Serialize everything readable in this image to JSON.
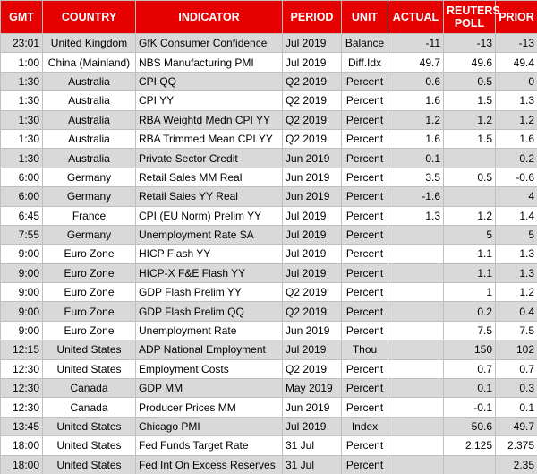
{
  "table": {
    "headers": [
      "GMT",
      "COUNTRY",
      "INDICATOR",
      "PERIOD",
      "UNIT",
      "ACTUAL",
      "REUTERS POLL",
      "PRIOR"
    ],
    "rows": [
      [
        "23:01",
        "United Kingdom",
        "GfK Consumer Confidence",
        "Jul 2019",
        "Balance",
        -11,
        -13,
        -13
      ],
      [
        "1:00",
        "China (Mainland)",
        "NBS Manufacturing PMI",
        "Jul 2019",
        "Diff.Idx",
        49.7,
        49.6,
        49.4
      ],
      [
        "1:30",
        "Australia",
        "CPI QQ",
        "Q2 2019",
        "Percent",
        0.6,
        0.5,
        0
      ],
      [
        "1:30",
        "Australia",
        "CPI YY",
        "Q2 2019",
        "Percent",
        1.6,
        1.5,
        1.3
      ],
      [
        "1:30",
        "Australia",
        "RBA Weightd Medn CPI YY",
        "Q2 2019",
        "Percent",
        1.2,
        1.2,
        1.2
      ],
      [
        "1:30",
        "Australia",
        "RBA Trimmed Mean CPI YY",
        "Q2 2019",
        "Percent",
        1.6,
        1.5,
        1.6
      ],
      [
        "1:30",
        "Australia",
        "Private Sector Credit",
        "Jun 2019",
        "Percent",
        0.1,
        null,
        0.2
      ],
      [
        "6:00",
        "Germany",
        "Retail Sales MM Real",
        "Jun 2019",
        "Percent",
        3.5,
        0.5,
        -0.6
      ],
      [
        "6:00",
        "Germany",
        "Retail Sales YY Real",
        "Jun 2019",
        "Percent",
        -1.6,
        null,
        4
      ],
      [
        "6:45",
        "France",
        "CPI (EU Norm) Prelim YY",
        "Jul 2019",
        "Percent",
        1.3,
        1.2,
        1.4
      ],
      [
        "7:55",
        "Germany",
        "Unemployment Rate SA",
        "Jul 2019",
        "Percent",
        null,
        5,
        5
      ],
      [
        "9:00",
        "Euro Zone",
        "HICP Flash YY",
        "Jul 2019",
        "Percent",
        null,
        1.1,
        1.3
      ],
      [
        "9:00",
        "Euro Zone",
        "HICP-X F&E Flash YY",
        "Jul 2019",
        "Percent",
        null,
        1.1,
        1.3
      ],
      [
        "9:00",
        "Euro Zone",
        "GDP Flash Prelim YY",
        "Q2 2019",
        "Percent",
        null,
        1,
        1.2
      ],
      [
        "9:00",
        "Euro Zone",
        "GDP Flash Prelim QQ",
        "Q2 2019",
        "Percent",
        null,
        0.2,
        0.4
      ],
      [
        "9:00",
        "Euro Zone",
        "Unemployment Rate",
        "Jun 2019",
        "Percent",
        null,
        7.5,
        7.5
      ],
      [
        "12:15",
        "United States",
        "ADP National Employment",
        "Jul 2019",
        "Thou",
        null,
        150,
        102
      ],
      [
        "12:30",
        "United States",
        "Employment Costs",
        "Q2 2019",
        "Percent",
        null,
        0.7,
        0.7
      ],
      [
        "12:30",
        "Canada",
        "GDP MM",
        "May 2019",
        "Percent",
        null,
        0.1,
        0.3
      ],
      [
        "12:30",
        "Canada",
        "Producer Prices MM",
        "Jun 2019",
        "Percent",
        null,
        -0.1,
        0.1
      ],
      [
        "13:45",
        "United States",
        "Chicago PMI",
        "Jul 2019",
        "Index",
        null,
        50.6,
        49.7
      ],
      [
        "18:00",
        "United States",
        "Fed Funds Target Rate",
        "31 Jul",
        "Percent",
        null,
        2.125,
        2.375
      ],
      [
        "18:00",
        "United States",
        "Fed Int On Excess Reserves",
        "31 Jul",
        "Percent",
        null,
        null,
        2.35
      ]
    ]
  }
}
